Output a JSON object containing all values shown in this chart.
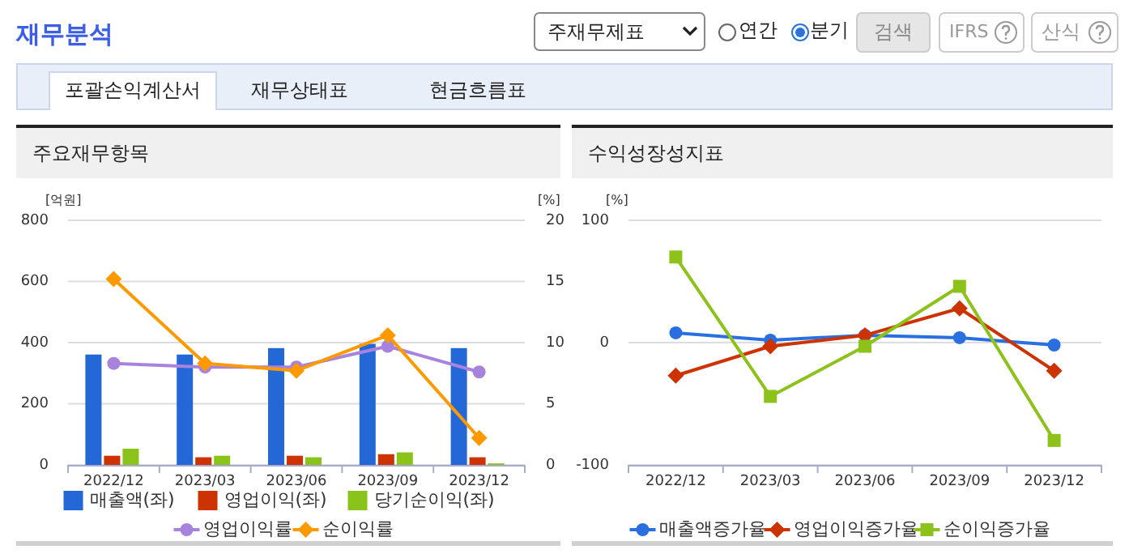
{
  "chart_data": [
    {
      "type": "other",
      "title": "재무분석",
      "annotations": [
        "주재무제표",
        "연간",
        "분기",
        "검색",
        "IFRS",
        "산식",
        "포괄손익계산서",
        "재무상태표",
        "현금흐름표"
      ]
    },
    {
      "type": "bar",
      "title": "주요재무항목",
      "ylabel": "[억원]",
      "y2label": "[%]",
      "categories": [
        "2022/12",
        "2023/03",
        "2023/06",
        "2023/09",
        "2023/12"
      ],
      "ylim": [
        0,
        800
      ],
      "yticks": [
        0,
        200,
        400,
        600,
        800
      ],
      "y2lim": [
        0,
        20
      ],
      "y2ticks": [
        0,
        5,
        10,
        15,
        20
      ],
      "grid": "y",
      "legend": "bottom",
      "series": [
        {
          "name": "매출액(좌)",
          "color": "#2468d8",
          "values": [
            361,
            361,
            382,
            396,
            382
          ]
        },
        {
          "name": "영업이익(좌)",
          "color": "#cc3300",
          "values": [
            30,
            25,
            30,
            35,
            25
          ]
        },
        {
          "name": "당기순이익(좌)",
          "color": "#8ac31a",
          "values": [
            53,
            30,
            25,
            41,
            5
          ]
        },
        {
          "name": "영업이익률",
          "type": "line",
          "axis": "y2",
          "marker": "circle",
          "color": "#a883dd",
          "values": [
            8.3,
            8.0,
            8.0,
            9.7,
            7.6
          ]
        },
        {
          "name": "순이익률",
          "type": "line",
          "axis": "y2",
          "marker": "diamond",
          "color": "#ff9900",
          "values": [
            15.2,
            8.3,
            7.7,
            10.6,
            2.2
          ]
        }
      ]
    },
    {
      "type": "line",
      "title": "수익성장성지표",
      "ylabel": "[%]",
      "categories": [
        "2022/12",
        "2023/03",
        "2023/06",
        "2023/09",
        "2023/12"
      ],
      "ylim": [
        -100,
        100
      ],
      "yticks": [
        -100,
        0,
        100
      ],
      "grid": "y",
      "legend": "bottom",
      "series": [
        {
          "name": "매출액증가율",
          "marker": "circle",
          "color": "#2a6fe0",
          "values": [
            8,
            2,
            6,
            4,
            -2
          ]
        },
        {
          "name": "영업이익증가율",
          "marker": "diamond",
          "color": "#cc3300",
          "values": [
            -27,
            -3,
            6,
            28,
            -23
          ]
        },
        {
          "name": "순이익증가율",
          "marker": "square",
          "color": "#8cc21a",
          "values": [
            70,
            -44,
            -3,
            46,
            -80
          ]
        }
      ]
    }
  ]
}
